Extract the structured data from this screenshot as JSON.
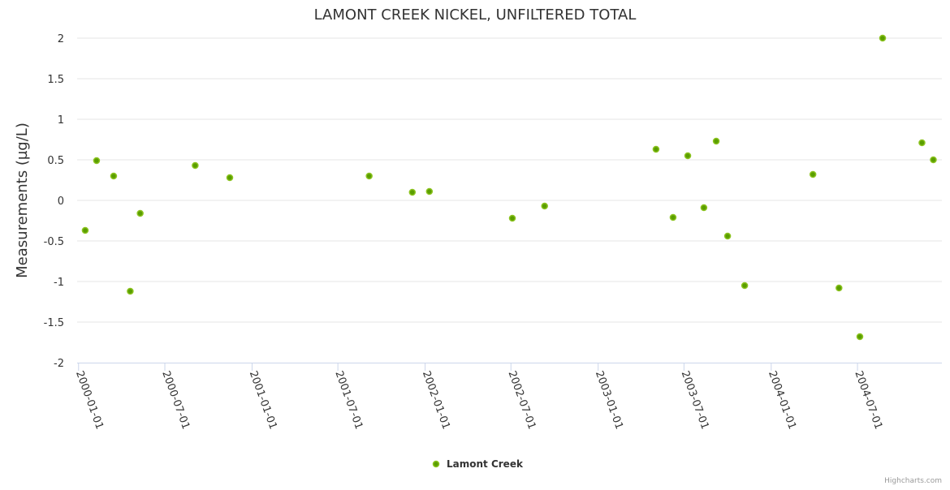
{
  "chart_data": {
    "type": "scatter",
    "title": "LAMONT CREEK NICKEL, UNFILTERED TOTAL",
    "xlabel": "",
    "ylabel": "Measurements (µg/L)",
    "ylim": [
      -2,
      2
    ],
    "yticks": [
      "2",
      "1.5",
      "1",
      "0.5",
      "0",
      "-0.5",
      "-1",
      "-1.5",
      "-2"
    ],
    "ytick_values": [
      2,
      1.5,
      1,
      0.5,
      0,
      -0.5,
      -1,
      -1.5,
      -2
    ],
    "xticks": [
      "2000-01-01",
      "2000-07-01",
      "2001-01-01",
      "2001-07-01",
      "2002-01-01",
      "2002-07-01",
      "2003-01-01",
      "2003-07-01",
      "2004-01-01",
      "2004-07-01"
    ],
    "xlim": [
      "1999-12-29",
      "2004-12-26"
    ],
    "grid": true,
    "legend_position": "bottom-center",
    "series": [
      {
        "name": "Lamont Creek",
        "color": "#5a9e00",
        "points": [
          {
            "x": "2000-01-15",
            "y": -0.37
          },
          {
            "x": "2000-02-08",
            "y": 0.49
          },
          {
            "x": "2000-03-15",
            "y": 0.3
          },
          {
            "x": "2000-04-19",
            "y": -1.12
          },
          {
            "x": "2000-05-10",
            "y": -0.16
          },
          {
            "x": "2000-09-03",
            "y": 0.43
          },
          {
            "x": "2000-11-15",
            "y": 0.28
          },
          {
            "x": "2001-09-05",
            "y": 0.3
          },
          {
            "x": "2001-12-05",
            "y": 0.1
          },
          {
            "x": "2002-01-10",
            "y": 0.11
          },
          {
            "x": "2002-07-04",
            "y": -0.22
          },
          {
            "x": "2002-09-10",
            "y": -0.07
          },
          {
            "x": "2003-05-03",
            "y": 0.63
          },
          {
            "x": "2003-06-08",
            "y": -0.21
          },
          {
            "x": "2003-07-09",
            "y": 0.55
          },
          {
            "x": "2003-08-12",
            "y": -0.09
          },
          {
            "x": "2003-09-07",
            "y": 0.73
          },
          {
            "x": "2003-10-01",
            "y": -0.44
          },
          {
            "x": "2003-11-06",
            "y": -1.05
          },
          {
            "x": "2004-03-29",
            "y": 0.32
          },
          {
            "x": "2004-05-23",
            "y": -1.08
          },
          {
            "x": "2004-07-06",
            "y": -1.68
          },
          {
            "x": "2004-08-23",
            "y": 2.0
          },
          {
            "x": "2004-11-14",
            "y": 0.71
          },
          {
            "x": "2004-12-08",
            "y": 0.5
          }
        ]
      }
    ]
  },
  "credits": "Highcharts.com"
}
